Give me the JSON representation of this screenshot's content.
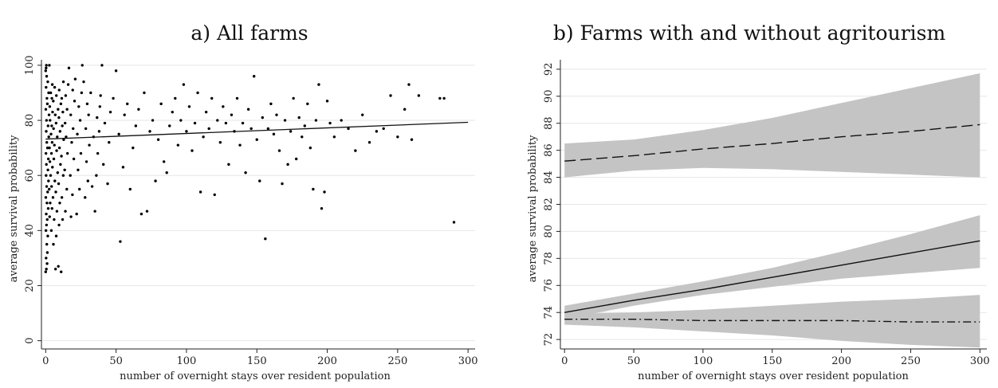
{
  "chart_data": [
    {
      "type": "scatter",
      "title": "a) All farms",
      "xlabel": "number of overnight stays over resident population",
      "ylabel": "average survival probability",
      "xlim": [
        -3,
        305
      ],
      "ylim": [
        -3,
        102
      ],
      "x_ticks": [
        0,
        50,
        100,
        150,
        200,
        250,
        300
      ],
      "y_ticks": [
        0,
        20,
        40,
        60,
        80,
        100
      ],
      "grid": true,
      "fit_line": {
        "x": [
          0,
          300
        ],
        "y": [
          73.2,
          79.3
        ],
        "style": "solid"
      },
      "points": [
        [
          0,
          25
        ],
        [
          0.5,
          26
        ],
        [
          1,
          28
        ],
        [
          0.3,
          30
        ],
        [
          1.2,
          32
        ],
        [
          0.8,
          35
        ],
        [
          1.5,
          38
        ],
        [
          0.2,
          40
        ],
        [
          0.6,
          42
        ],
        [
          1.1,
          44
        ],
        [
          0.4,
          46
        ],
        [
          1.8,
          48
        ],
        [
          0.9,
          50
        ],
        [
          0.1,
          52
        ],
        [
          1.4,
          54
        ],
        [
          0.7,
          56
        ],
        [
          2,
          58
        ],
        [
          0.3,
          60
        ],
        [
          1.6,
          62
        ],
        [
          0.5,
          64
        ],
        [
          1.9,
          66
        ],
        [
          0.2,
          68
        ],
        [
          1.3,
          70
        ],
        [
          0.8,
          72
        ],
        [
          2.2,
          74
        ],
        [
          0.4,
          76
        ],
        [
          1.7,
          78
        ],
        [
          0.6,
          80
        ],
        [
          2.4,
          82
        ],
        [
          0.1,
          84
        ],
        [
          1.2,
          86
        ],
        [
          0.9,
          88
        ],
        [
          2.1,
          90
        ],
        [
          0.3,
          92
        ],
        [
          1.5,
          94
        ],
        [
          0.7,
          96
        ],
        [
          0,
          98
        ],
        [
          0.5,
          100
        ],
        [
          2.6,
          100
        ],
        [
          0.3,
          99
        ],
        [
          2.8,
          45
        ],
        [
          3.2,
          50
        ],
        [
          2.5,
          55
        ],
        [
          3.5,
          60
        ],
        [
          3,
          65
        ],
        [
          2.7,
          70
        ],
        [
          3.8,
          75
        ],
        [
          3.1,
          80
        ],
        [
          2.9,
          85
        ],
        [
          3.6,
          90
        ],
        [
          4,
          40
        ],
        [
          4.5,
          48
        ],
        [
          4.2,
          56
        ],
        [
          4.8,
          63
        ],
        [
          4.1,
          68
        ],
        [
          4.6,
          72
        ],
        [
          4.3,
          78
        ],
        [
          4.9,
          83
        ],
        [
          4.4,
          88
        ],
        [
          4.7,
          93
        ],
        [
          5.5,
          35
        ],
        [
          6,
          44
        ],
        [
          5.2,
          52
        ],
        [
          6.5,
          58
        ],
        [
          5.8,
          66
        ],
        [
          6.2,
          71
        ],
        [
          5.6,
          77
        ],
        [
          6.8,
          82
        ],
        [
          5.4,
          87
        ],
        [
          6.4,
          92
        ],
        [
          7,
          26
        ],
        [
          7.5,
          38
        ],
        [
          8,
          47
        ],
        [
          7.2,
          54
        ],
        [
          8.5,
          61
        ],
        [
          7.8,
          69
        ],
        [
          8.2,
          74
        ],
        [
          7.4,
          79
        ],
        [
          8.8,
          84
        ],
        [
          7.6,
          89
        ],
        [
          9,
          27
        ],
        [
          9.5,
          42
        ],
        [
          10,
          50
        ],
        [
          9.2,
          57
        ],
        [
          10.5,
          64
        ],
        [
          9.8,
          70
        ],
        [
          10.2,
          76
        ],
        [
          9.4,
          81
        ],
        [
          10.8,
          86
        ],
        [
          9.6,
          91
        ],
        [
          11,
          25
        ],
        [
          12,
          44
        ],
        [
          11.5,
          52
        ],
        [
          12.5,
          60
        ],
        [
          11.2,
          67
        ],
        [
          12.8,
          73
        ],
        [
          11.8,
          78
        ],
        [
          12.2,
          83
        ],
        [
          11.4,
          88
        ],
        [
          12.6,
          94
        ],
        [
          14,
          47
        ],
        [
          15,
          55
        ],
        [
          13.5,
          62
        ],
        [
          15.5,
          68
        ],
        [
          14.5,
          74
        ],
        [
          13.8,
          79
        ],
        [
          15.2,
          84
        ],
        [
          14.2,
          89
        ],
        [
          16,
          93
        ],
        [
          16.5,
          99
        ],
        [
          18,
          45
        ],
        [
          19,
          53
        ],
        [
          17.5,
          60
        ],
        [
          20,
          66
        ],
        [
          18.5,
          72
        ],
        [
          19.5,
          77
        ],
        [
          17.8,
          82
        ],
        [
          20.5,
          87
        ],
        [
          19.2,
          91
        ],
        [
          21,
          95
        ],
        [
          22,
          46
        ],
        [
          24,
          55
        ],
        [
          23,
          62
        ],
        [
          25,
          68
        ],
        [
          22.5,
          75
        ],
        [
          24.5,
          80
        ],
        [
          23.5,
          85
        ],
        [
          25.5,
          90
        ],
        [
          26,
          100
        ],
        [
          27,
          94
        ],
        [
          28,
          52
        ],
        [
          30,
          58
        ],
        [
          29,
          65
        ],
        [
          31,
          71
        ],
        [
          28.5,
          77
        ],
        [
          30.5,
          82
        ],
        [
          29.5,
          86
        ],
        [
          32,
          90
        ],
        [
          33,
          56
        ],
        [
          34,
          74
        ],
        [
          35,
          47
        ],
        [
          36,
          60
        ],
        [
          37,
          68
        ],
        [
          38,
          76
        ],
        [
          36.5,
          81
        ],
        [
          38.5,
          85
        ],
        [
          39,
          89
        ],
        [
          40,
          100
        ],
        [
          41,
          64
        ],
        [
          42,
          79
        ],
        [
          44,
          57
        ],
        [
          45,
          72
        ],
        [
          46,
          83
        ],
        [
          48,
          88
        ],
        [
          50,
          98
        ],
        [
          52,
          75
        ],
        [
          53,
          36
        ],
        [
          55,
          63
        ],
        [
          56,
          82
        ],
        [
          58,
          86
        ],
        [
          60,
          55
        ],
        [
          62,
          70
        ],
        [
          64,
          78
        ],
        [
          66,
          84
        ],
        [
          68,
          46
        ],
        [
          70,
          90
        ],
        [
          72,
          47
        ],
        [
          74,
          76
        ],
        [
          76,
          80
        ],
        [
          78,
          58
        ],
        [
          80,
          73
        ],
        [
          82,
          86
        ],
        [
          84,
          65
        ],
        [
          86,
          61
        ],
        [
          88,
          78
        ],
        [
          90,
          83
        ],
        [
          92,
          88
        ],
        [
          94,
          71
        ],
        [
          96,
          80
        ],
        [
          98,
          93
        ],
        [
          100,
          76
        ],
        [
          102,
          85
        ],
        [
          104,
          69
        ],
        [
          106,
          79
        ],
        [
          108,
          90
        ],
        [
          110,
          54
        ],
        [
          112,
          74
        ],
        [
          114,
          83
        ],
        [
          116,
          77
        ],
        [
          118,
          88
        ],
        [
          120,
          53
        ],
        [
          122,
          80
        ],
        [
          124,
          72
        ],
        [
          126,
          85
        ],
        [
          128,
          79
        ],
        [
          130,
          64
        ],
        [
          132,
          82
        ],
        [
          134,
          76
        ],
        [
          136,
          88
        ],
        [
          138,
          71
        ],
        [
          140,
          79
        ],
        [
          142,
          61
        ],
        [
          144,
          84
        ],
        [
          146,
          77
        ],
        [
          148,
          96
        ],
        [
          150,
          73
        ],
        [
          152,
          58
        ],
        [
          154,
          81
        ],
        [
          156,
          37
        ],
        [
          158,
          77
        ],
        [
          160,
          86
        ],
        [
          162,
          75
        ],
        [
          164,
          82
        ],
        [
          166,
          69
        ],
        [
          168,
          57
        ],
        [
          170,
          80
        ],
        [
          172,
          64
        ],
        [
          174,
          76
        ],
        [
          176,
          88
        ],
        [
          178,
          66
        ],
        [
          180,
          81
        ],
        [
          182,
          74
        ],
        [
          184,
          78
        ],
        [
          186,
          86
        ],
        [
          188,
          70
        ],
        [
          190,
          55
        ],
        [
          192,
          80
        ],
        [
          194,
          93
        ],
        [
          196,
          48
        ],
        [
          198,
          54
        ],
        [
          200,
          87
        ],
        [
          202,
          79
        ],
        [
          205,
          74
        ],
        [
          210,
          80
        ],
        [
          215,
          77
        ],
        [
          220,
          69
        ],
        [
          225,
          82
        ],
        [
          230,
          72
        ],
        [
          235,
          76
        ],
        [
          240,
          77
        ],
        [
          245,
          89
        ],
        [
          250,
          74
        ],
        [
          255,
          84
        ],
        [
          258,
          93
        ],
        [
          260,
          73
        ],
        [
          265,
          89
        ],
        [
          280,
          88
        ],
        [
          283,
          88
        ],
        [
          290,
          43
        ]
      ]
    },
    {
      "type": "line",
      "title": "b) Farms with and without agritourism",
      "xlabel": "number of overnight stays over resident population",
      "ylabel": "average survival probability",
      "xlim": [
        -3,
        305
      ],
      "ylim": [
        71.3,
        92.7
      ],
      "x_ticks": [
        0,
        50,
        100,
        150,
        200,
        250,
        300
      ],
      "y_ticks": [
        72,
        74,
        76,
        78,
        80,
        82,
        84,
        86,
        88,
        90,
        92
      ],
      "grid": true,
      "series": [
        {
          "style": "long-dash",
          "x": [
            0,
            50,
            100,
            150,
            200,
            250,
            300
          ],
          "y": [
            85.2,
            85.6,
            86.1,
            86.5,
            87.0,
            87.4,
            87.9
          ],
          "lower": [
            84.0,
            84.5,
            84.7,
            84.6,
            84.4,
            84.2,
            84.0
          ],
          "upper": [
            86.5,
            86.8,
            87.5,
            88.4,
            89.5,
            90.6,
            91.7
          ]
        },
        {
          "style": "solid",
          "x": [
            0,
            50,
            100,
            150,
            200,
            250,
            300
          ],
          "y": [
            74.0,
            74.9,
            75.7,
            76.6,
            77.5,
            78.4,
            79.3
          ],
          "lower": [
            73.5,
            74.5,
            75.3,
            75.9,
            76.5,
            76.9,
            77.3
          ],
          "upper": [
            74.5,
            75.4,
            76.3,
            77.3,
            78.5,
            79.8,
            81.2
          ]
        },
        {
          "style": "dash-dot",
          "x": [
            0,
            50,
            100,
            150,
            200,
            250,
            300
          ],
          "y": [
            73.5,
            73.5,
            73.4,
            73.4,
            73.4,
            73.3,
            73.3
          ],
          "lower": [
            73.1,
            72.9,
            72.6,
            72.3,
            71.9,
            71.6,
            71.4
          ],
          "upper": [
            73.9,
            74.0,
            74.2,
            74.5,
            74.8,
            75.0,
            75.3
          ]
        }
      ]
    }
  ]
}
